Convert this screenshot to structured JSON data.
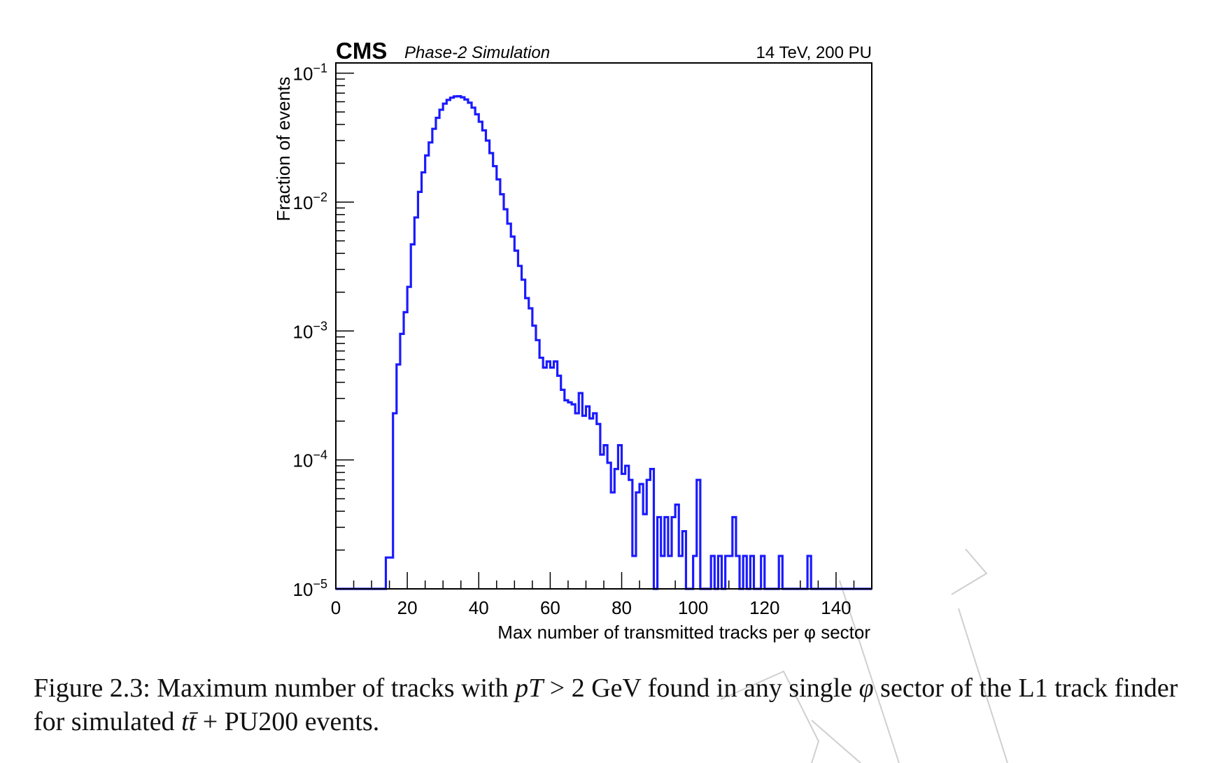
{
  "chart_data": {
    "type": "histogram",
    "experiment_label": "CMS",
    "status_label": "Phase-2 Simulation",
    "energy_label": "14 TeV, 200 PU",
    "xlabel": "Max number of transmitted tracks per φ sector",
    "ylabel": "Fraction of events",
    "xlim": [
      0,
      150
    ],
    "ylim": [
      1e-05,
      0.12
    ],
    "yscale": "log",
    "x_ticks": [
      0,
      20,
      40,
      60,
      80,
      100,
      120,
      140
    ],
    "x_tick_labels": [
      "0",
      "20",
      "40",
      "60",
      "80",
      "100",
      "120",
      "140"
    ],
    "y_ticks": [
      1e-05,
      0.0001,
      0.001,
      0.01,
      0.1
    ],
    "y_tick_labels": [
      {
        "base": "10",
        "exp": "−5"
      },
      {
        "base": "10",
        "exp": "−4"
      },
      {
        "base": "10",
        "exp": "−3"
      },
      {
        "base": "10",
        "exp": "−2"
      },
      {
        "base": "10",
        "exp": "−1"
      }
    ],
    "line_color": "#1a1aff",
    "bin_width": 1,
    "bins": [
      [
        14,
        1.75e-05
      ],
      [
        15,
        1.75e-05
      ],
      [
        16,
        0.00023
      ],
      [
        17,
        0.00055
      ],
      [
        18,
        0.00095
      ],
      [
        19,
        0.0014
      ],
      [
        20,
        0.0022
      ],
      [
        21,
        0.0047
      ],
      [
        22,
        0.0076
      ],
      [
        23,
        0.012
      ],
      [
        24,
        0.017
      ],
      [
        25,
        0.023
      ],
      [
        26,
        0.029
      ],
      [
        27,
        0.037
      ],
      [
        28,
        0.045
      ],
      [
        29,
        0.052
      ],
      [
        30,
        0.058
      ],
      [
        31,
        0.062
      ],
      [
        32,
        0.0645
      ],
      [
        33,
        0.066
      ],
      [
        34,
        0.0662
      ],
      [
        35,
        0.065
      ],
      [
        36,
        0.0625
      ],
      [
        37,
        0.059
      ],
      [
        38,
        0.054
      ],
      [
        39,
        0.048
      ],
      [
        40,
        0.042
      ],
      [
        41,
        0.036
      ],
      [
        42,
        0.03
      ],
      [
        43,
        0.024
      ],
      [
        44,
        0.019
      ],
      [
        45,
        0.015
      ],
      [
        46,
        0.0115
      ],
      [
        47,
        0.0088
      ],
      [
        48,
        0.0068
      ],
      [
        49,
        0.0054
      ],
      [
        50,
        0.0042
      ],
      [
        51,
        0.0032
      ],
      [
        52,
        0.0025
      ],
      [
        53,
        0.0018
      ],
      [
        54,
        0.0015
      ],
      [
        55,
        0.0011
      ],
      [
        56,
        0.00085
      ],
      [
        57,
        0.00062
      ],
      [
        58,
        0.00052
      ],
      [
        59,
        0.00058
      ],
      [
        60,
        0.00052
      ],
      [
        61,
        0.00058
      ],
      [
        62,
        0.00045
      ],
      [
        63,
        0.00035
      ],
      [
        64,
        0.00029
      ],
      [
        65,
        0.00028
      ],
      [
        66,
        0.00027
      ],
      [
        67,
        0.00023
      ],
      [
        68,
        0.00033
      ],
      [
        69,
        0.00022
      ],
      [
        70,
        0.00026
      ],
      [
        71,
        0.00021
      ],
      [
        72,
        0.00023
      ],
      [
        73,
        0.00019
      ],
      [
        74,
        0.00011
      ],
      [
        75,
        0.00013
      ],
      [
        76,
        9.5e-05
      ],
      [
        77,
        5.6e-05
      ],
      [
        78,
        8.5e-05
      ],
      [
        79,
        0.00013
      ],
      [
        80,
        7.8e-05
      ],
      [
        81,
        9e-05
      ],
      [
        82,
        7e-05
      ],
      [
        83,
        1.8e-05
      ],
      [
        84,
        5.6e-05
      ],
      [
        85,
        6.5e-05
      ],
      [
        86,
        3.8e-05
      ],
      [
        87,
        7e-05
      ],
      [
        88,
        8.5e-05
      ],
      [
        89,
        1e-05
      ],
      [
        90,
        3.6e-05
      ],
      [
        91,
        1.8e-05
      ],
      [
        92,
        3.6e-05
      ],
      [
        93,
        1.8e-05
      ],
      [
        94,
        3.6e-05
      ],
      [
        95,
        4.5e-05
      ],
      [
        96,
        1.8e-05
      ],
      [
        97,
        2.8e-05
      ],
      [
        98,
        1e-05
      ],
      [
        99,
        1e-05
      ],
      [
        100,
        1.8e-05
      ],
      [
        101,
        7e-05
      ],
      [
        102,
        1e-05
      ],
      [
        103,
        1e-05
      ],
      [
        104,
        1e-05
      ],
      [
        105,
        1.8e-05
      ],
      [
        106,
        1e-05
      ],
      [
        107,
        1.8e-05
      ],
      [
        108,
        1e-05
      ],
      [
        109,
        1.8e-05
      ],
      [
        110,
        1.8e-05
      ],
      [
        111,
        3.6e-05
      ],
      [
        112,
        1.8e-05
      ],
      [
        113,
        1e-05
      ],
      [
        114,
        1.8e-05
      ],
      [
        115,
        1e-05
      ],
      [
        116,
        1.8e-05
      ],
      [
        117,
        1e-05
      ],
      [
        118,
        1e-05
      ],
      [
        119,
        1.8e-05
      ],
      [
        120,
        1e-05
      ],
      [
        121,
        1e-05
      ],
      [
        122,
        1e-05
      ],
      [
        123,
        1e-05
      ],
      [
        124,
        1.8e-05
      ],
      [
        125,
        1e-05
      ],
      [
        126,
        1e-05
      ],
      [
        127,
        1e-05
      ],
      [
        128,
        1e-05
      ],
      [
        129,
        1e-05
      ],
      [
        130,
        1e-05
      ],
      [
        131,
        1e-05
      ],
      [
        132,
        1.8e-05
      ],
      [
        133,
        1e-05
      ]
    ]
  },
  "caption": {
    "figure_number": "Figure 2.3:",
    "text_part1": " Maximum number of tracks with ",
    "math_pt": "pT",
    "math_cmp": " > 2 GeV",
    "text_part2": " found in any single ",
    "math_phi": "φ",
    "text_part3": " sector of the L1 track finder for simulated ",
    "math_ttbar": "tt̄",
    "text_part4": " + PU200 events."
  }
}
